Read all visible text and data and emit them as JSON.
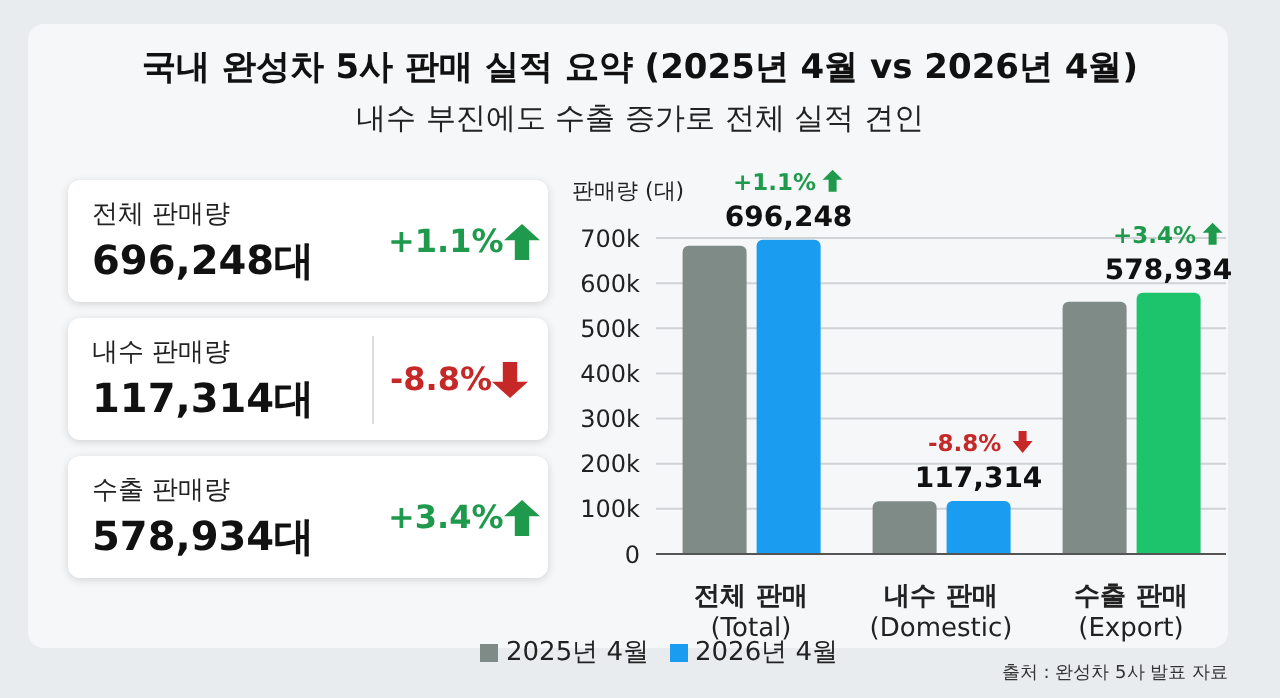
{
  "chart_data": [
    {
      "type": "other",
      "annotations": [
        "전체 판매량",
        "696,248대",
        "+1.1%",
        "내수 판매량",
        "117,314대",
        "-8.8%",
        "수출 판매량",
        "578,934대",
        "+3.4%"
      ]
    },
    {
      "type": "bar",
      "title": "국내 완성차 5사 판매 실적 요약 (2025년 4월 vs 2026년 4월)",
      "subtitle": "내수 부진에도 수출 증가로 전체 실적 견인",
      "ylabel": "판매량 (대)",
      "categories": [
        "전체 판매\n(Total)",
        "내수 판매\n(Domestic)",
        "수출 판매\n(Export)"
      ],
      "series": [
        {
          "name": "2025년 4월",
          "color": "#7f8b87",
          "values": [
            683000,
            117000,
            559000
          ]
        },
        {
          "name": "2026년 4월",
          "color": "#1a9cf0",
          "colors": [
            "#1a9cf0",
            "#1a9cf0",
            "#1ec46c"
          ],
          "values": [
            696248,
            117314,
            578934
          ],
          "value_labels": [
            "696,248",
            "117,314",
            "578,934"
          ]
        }
      ],
      "ylim": [
        0,
        700000
      ],
      "yticks": [
        0,
        {
          "value": 100000,
          "label": "100k"
        },
        {
          "value": 200000,
          "label": "200k"
        },
        {
          "value": 300000,
          "label": "300k"
        },
        {
          "value": 400000,
          "label": "400k"
        },
        {
          "value": 500000,
          "label": "500k"
        },
        {
          "value": 600000,
          "label": "600k"
        },
        {
          "value": 700000,
          "label": "700k"
        }
      ],
      "grid": "y",
      "legend": "bottom",
      "annotations": [
        "+1.1%",
        "-8.8%",
        "+3.4%",
        "출처 : 완성차 5사 발표 자료"
      ]
    }
  ]
}
